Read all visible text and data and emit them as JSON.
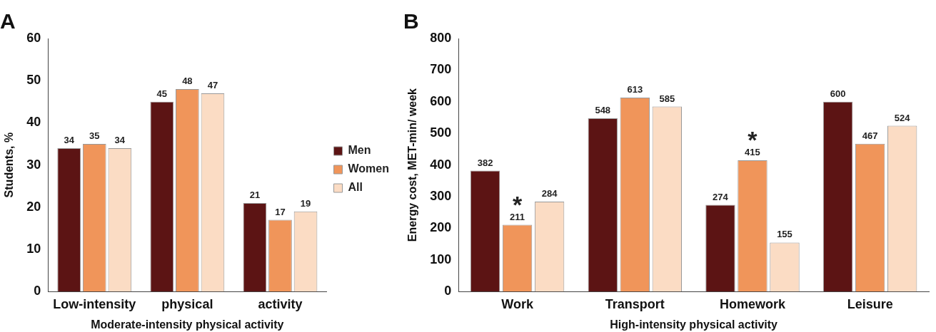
{
  "chart_data": [
    {
      "type": "bar",
      "title": "A",
      "xlabel": "Moderate-intensity physical activity",
      "ylabel": "Students, %",
      "categories": [
        "Low-intensity",
        "physical",
        "activity"
      ],
      "series": [
        {
          "name": "Men",
          "color": "#5c1414",
          "values": [
            34,
            45,
            21
          ]
        },
        {
          "name": "Women",
          "color": "#f0955a",
          "values": [
            35,
            48,
            17
          ]
        },
        {
          "name": "All",
          "color": "#fbdcc4",
          "values": [
            34,
            47,
            19
          ]
        }
      ],
      "ylim": [
        0,
        60
      ],
      "yticks": [
        0,
        10,
        20,
        30,
        40,
        50,
        60
      ],
      "grid": false,
      "legend": "right",
      "data_labels": true
    },
    {
      "type": "bar",
      "title": "B",
      "xlabel": "High-intensity physical activity",
      "ylabel": "Energy cost, MET-min/ week",
      "categories": [
        "Work",
        "Transport",
        "Homework",
        "Leisure"
      ],
      "series": [
        {
          "color": "#5c1414",
          "values": [
            382,
            548,
            274,
            600
          ]
        },
        {
          "color": "#f0955a",
          "values": [
            211,
            613,
            415,
            467
          ]
        },
        {
          "color": "#fbdcc4",
          "values": [
            284,
            585,
            155,
            524
          ]
        }
      ],
      "ylim": [
        0,
        800
      ],
      "yticks": [
        0,
        100,
        200,
        300,
        400,
        500,
        600,
        700,
        800
      ],
      "grid": false,
      "legend": false,
      "data_labels": true,
      "annotations": [
        {
          "text": "*",
          "x": "Work",
          "y": 211
        },
        {
          "text": "*",
          "x": "Homework",
          "y": 415
        }
      ]
    }
  ]
}
